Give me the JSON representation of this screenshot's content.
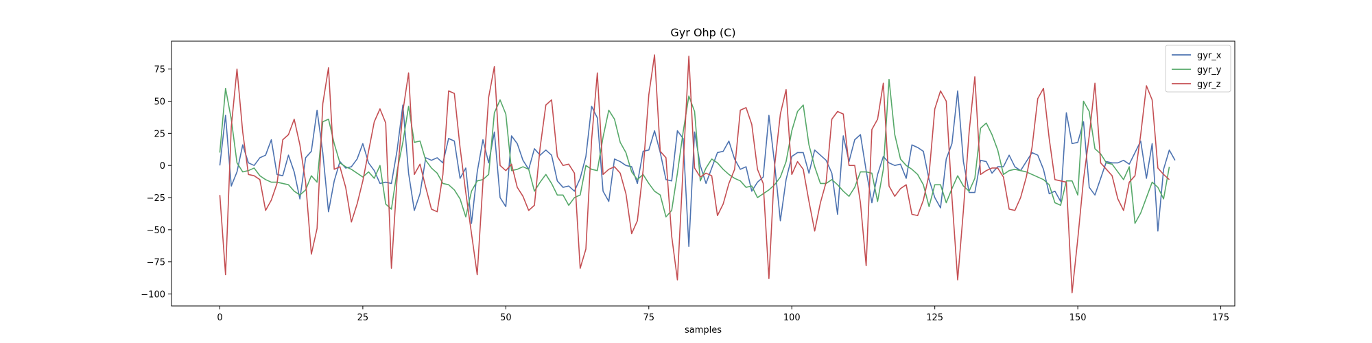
{
  "chart_data": {
    "type": "line",
    "title": "Gyr Ohp (C)",
    "xlabel": "samples",
    "ylabel": "",
    "xlim": [
      -8.45,
      177.45
    ],
    "ylim": [
      -109.3,
      96.7
    ],
    "xticks": [
      0,
      25,
      50,
      75,
      100,
      125,
      150,
      175
    ],
    "yticks": [
      -100,
      -75,
      -50,
      -25,
      0,
      25,
      50,
      75
    ],
    "grid": false,
    "legend_position": "top-right",
    "x_start": 0,
    "series": [
      {
        "name": "gyr_x",
        "color": "#4c72b0",
        "values": [
          0,
          39,
          -16,
          -5,
          16,
          2,
          0,
          6,
          8,
          20,
          -7,
          -8,
          8,
          -5,
          -26,
          6,
          11,
          43,
          10,
          -36,
          -12,
          3,
          -2,
          -1,
          5,
          17,
          2,
          -4,
          -14,
          -13,
          -14,
          12,
          47,
          -6,
          -35,
          -22,
          6,
          4,
          6,
          2,
          21,
          19,
          -10,
          -2,
          -45,
          -5,
          20,
          2,
          26,
          -25,
          -32,
          23,
          17,
          4,
          -3,
          13,
          8,
          12,
          8,
          -12,
          -17,
          -16,
          -20,
          -10,
          7,
          46,
          37,
          -20,
          -28,
          5,
          3,
          0,
          -1,
          -14,
          11,
          12,
          27,
          10,
          -11,
          -12,
          27,
          21,
          -63,
          26,
          0,
          -14,
          -2,
          10,
          11,
          19,
          5,
          -3,
          -1,
          -20,
          -13,
          -9,
          39,
          1,
          -43,
          -11,
          7,
          10,
          10,
          -6,
          12,
          8,
          4,
          -6,
          -38,
          23,
          3,
          20,
          24,
          -4,
          -29,
          -7,
          7,
          2,
          0,
          1,
          -10,
          16,
          14,
          11,
          -11,
          -25,
          -33,
          5,
          17,
          58,
          3,
          -21,
          -21,
          4,
          3,
          -6,
          -1,
          -1,
          8,
          -1,
          -4,
          3,
          10,
          8,
          -3,
          -22,
          -20,
          -28,
          41,
          17,
          18,
          34,
          -17,
          -23,
          -10,
          3,
          2,
          2,
          4,
          1,
          10,
          19,
          -10,
          17,
          -51,
          -3,
          12,
          4
        ]
      },
      {
        "name": "gyr_y",
        "color": "#55a868",
        "values": [
          10,
          60,
          36,
          2,
          -5,
          -4,
          -2,
          -8,
          -11,
          -13,
          -13,
          -14,
          -15,
          -20,
          -23,
          -19,
          -8,
          -13,
          34,
          36,
          17,
          2,
          -1,
          -3,
          -6,
          -9,
          -5,
          -10,
          0,
          -30,
          -34,
          -4,
          18,
          46,
          18,
          19,
          4,
          -2,
          -6,
          -14,
          -15,
          -19,
          -26,
          -40,
          -20,
          -12,
          -11,
          -7,
          41,
          51,
          40,
          -4,
          -3,
          -1,
          -3,
          -20,
          -13,
          -7,
          -14,
          -23,
          -23,
          -31,
          -25,
          -23,
          0,
          -3,
          -4,
          22,
          43,
          36,
          18,
          10,
          -5,
          -11,
          -7,
          -14,
          -20,
          -23,
          -40,
          -35,
          -6,
          26,
          54,
          42,
          -12,
          -2,
          5,
          2,
          -3,
          -7,
          -10,
          -12,
          -17,
          -16,
          -25,
          -22,
          -19,
          -15,
          -9,
          3,
          27,
          42,
          47,
          16,
          -1,
          -14,
          -14,
          -11,
          -15,
          -20,
          -24,
          -17,
          -5,
          -5,
          -6,
          -28,
          -3,
          67,
          24,
          5,
          0,
          -3,
          -7,
          -15,
          -32,
          -15,
          -15,
          -29,
          -18,
          -8,
          -16,
          -20,
          -10,
          29,
          33,
          24,
          12,
          -7,
          -4,
          -3,
          -4,
          -5,
          -7,
          -9,
          -11,
          -15,
          -29,
          -31,
          -12,
          -12,
          -23,
          50,
          42,
          13,
          9,
          2,
          1,
          -5,
          -11,
          -1,
          -45,
          -37,
          -25,
          -13,
          -17,
          -26,
          -1
        ]
      },
      {
        "name": "gyr_z",
        "color": "#c44e52",
        "values": [
          -23,
          -85,
          30,
          75,
          26,
          -7,
          -8,
          -11,
          -35,
          -27,
          -14,
          20,
          24,
          36,
          16,
          -13,
          -69,
          -49,
          48,
          76,
          -3,
          -1,
          -17,
          -44,
          -30,
          -12,
          11,
          34,
          44,
          33,
          -80,
          -9,
          42,
          72,
          -7,
          1,
          -17,
          -34,
          -36,
          -7,
          58,
          56,
          14,
          -21,
          -53,
          -85,
          -13,
          53,
          77,
          0,
          -4,
          1,
          -17,
          -24,
          -35,
          -31,
          14,
          47,
          51,
          7,
          0,
          1,
          -6,
          -80,
          -65,
          20,
          72,
          -7,
          -3,
          -1,
          -6,
          -22,
          -53,
          -43,
          -4,
          55,
          86,
          11,
          6,
          -55,
          -89,
          -1,
          85,
          -2,
          -9,
          -6,
          -8,
          -39,
          -30,
          -14,
          -3,
          43,
          45,
          32,
          -3,
          -14,
          -88,
          0,
          40,
          59,
          -7,
          3,
          -3,
          -28,
          -51,
          -29,
          -13,
          36,
          42,
          40,
          0,
          0,
          -29,
          -78,
          28,
          36,
          64,
          -16,
          -24,
          -18,
          -15,
          -38,
          -39,
          -27,
          -7,
          44,
          58,
          50,
          -25,
          -89,
          -35,
          26,
          69,
          -7,
          -4,
          -2,
          -2,
          -9,
          -34,
          -35,
          -25,
          -9,
          14,
          52,
          60,
          21,
          -11,
          -12,
          -13,
          -99,
          -57,
          -11,
          23,
          64,
          2,
          -3,
          -8,
          -26,
          -35,
          -13,
          -8,
          24,
          62,
          51,
          -2,
          -7,
          -11
        ]
      }
    ]
  }
}
